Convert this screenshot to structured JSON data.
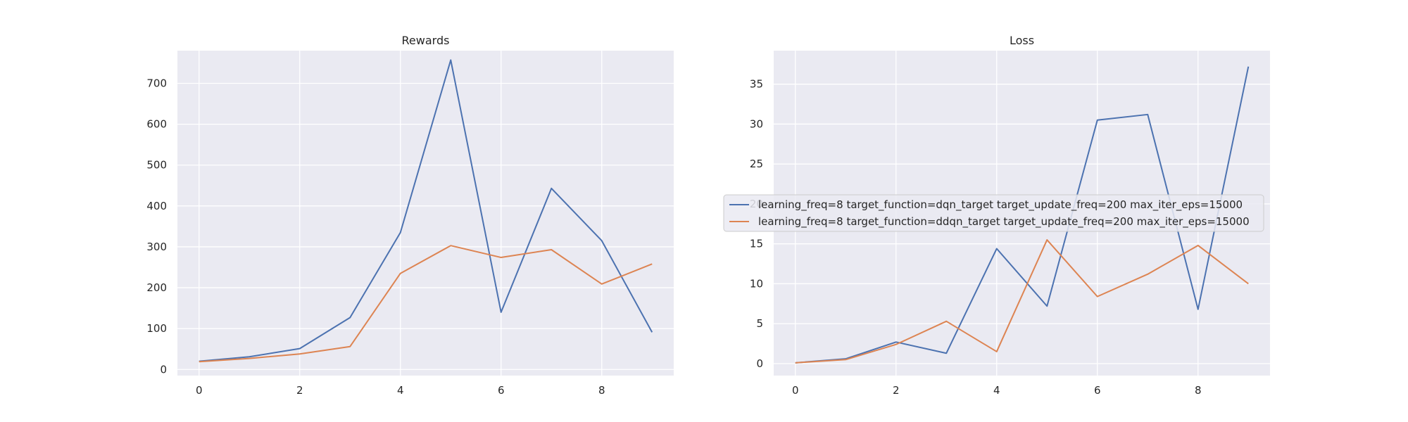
{
  "chart_data": [
    {
      "type": "line",
      "title": "Rewards",
      "xlabel": "",
      "ylabel": "",
      "x": [
        0,
        1,
        2,
        3,
        4,
        5,
        6,
        7,
        8,
        9
      ],
      "xlim": [
        -0.43,
        9.43
      ],
      "ylim": [
        -15,
        780
      ],
      "xticks": [
        0,
        2,
        4,
        6,
        8
      ],
      "yticks": [
        0,
        100,
        200,
        300,
        400,
        500,
        600,
        700
      ],
      "grid": true,
      "series": [
        {
          "name": "learning_freq=8 target_function=dqn_target target_update_freq=200 max_iter_eps=15000",
          "color": "#4c72b0",
          "values": [
            20,
            31,
            51,
            127,
            335,
            757,
            140,
            443,
            315,
            91
          ]
        },
        {
          "name": "learning_freq=8 target_function=ddqn_target target_update_freq=200 max_iter_eps=15000",
          "color": "#dd8452",
          "values": [
            19,
            27,
            38,
            56,
            235,
            303,
            274,
            293,
            209,
            258
          ]
        }
      ]
    },
    {
      "type": "line",
      "title": "Loss",
      "xlabel": "",
      "ylabel": "",
      "x": [
        0,
        1,
        2,
        3,
        4,
        5,
        6,
        7,
        8,
        9
      ],
      "xlim": [
        -0.43,
        9.43
      ],
      "ylim": [
        -1.5,
        39.2
      ],
      "xticks": [
        0,
        2,
        4,
        6,
        8
      ],
      "yticks": [
        0,
        5,
        10,
        15,
        20,
        25,
        30,
        35
      ],
      "grid": true,
      "legend_position": "center",
      "series": [
        {
          "name": "learning_freq=8 target_function=dqn_target target_update_freq=200 max_iter_eps=15000",
          "color": "#4c72b0",
          "values": [
            0.1,
            0.6,
            2.7,
            1.3,
            14.4,
            7.2,
            30.5,
            31.2,
            6.8,
            37.2
          ]
        },
        {
          "name": "learning_freq=8 target_function=ddqn_target target_update_freq=200 max_iter_eps=15000",
          "color": "#dd8452",
          "values": [
            0.1,
            0.5,
            2.4,
            5.3,
            1.5,
            15.5,
            8.4,
            11.2,
            14.8,
            10.0
          ]
        }
      ]
    }
  ]
}
